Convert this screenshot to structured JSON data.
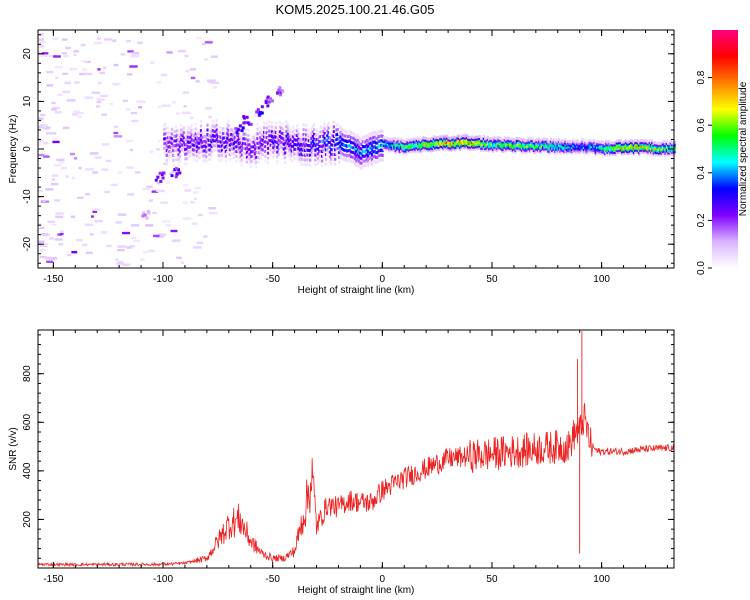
{
  "title": "KOM5.2025.100.21.46.G05",
  "chart_data": [
    {
      "type": "heatmap",
      "xlabel": "Height of straight line (km)",
      "ylabel": "Frequency (Hz)",
      "xlim": [
        -157,
        133
      ],
      "ylim": [
        -25,
        25
      ],
      "xticks": [
        -150,
        -100,
        -50,
        0,
        50,
        100
      ],
      "yticks": [
        -20,
        -10,
        0,
        10,
        20
      ],
      "colorbar": {
        "label": "Normalized spectral amplitude",
        "range": [
          0,
          1
        ],
        "ticks": [
          0.0,
          0.2,
          0.4,
          0.6,
          0.8
        ],
        "colormap": [
          "#ffffff",
          "#d9b3ff",
          "#8000ff",
          "#0000ff",
          "#00ffff",
          "#00ff00",
          "#ffff00",
          "#ff8000",
          "#ff0000",
          "#ff0080"
        ]
      },
      "ridge": [
        {
          "x": -95,
          "freq": 0.8,
          "amp": 0.25
        },
        {
          "x": -80,
          "freq": 1.8,
          "amp": 0.3
        },
        {
          "x": -70,
          "freq": 1.5,
          "amp": 0.3
        },
        {
          "x": -60,
          "freq": 0.5,
          "amp": 0.25
        },
        {
          "x": -50,
          "freq": 1.5,
          "amp": 0.3
        },
        {
          "x": -40,
          "freq": 1.2,
          "amp": 0.3
        },
        {
          "x": -30,
          "freq": 0.6,
          "amp": 0.35
        },
        {
          "x": -20,
          "freq": 1.5,
          "amp": 0.4
        },
        {
          "x": -10,
          "freq": -0.8,
          "amp": 0.4
        },
        {
          "x": 0,
          "freq": 1.0,
          "amp": 0.45
        },
        {
          "x": 10,
          "freq": 0.5,
          "amp": 0.6
        },
        {
          "x": 20,
          "freq": 1.0,
          "amp": 0.7
        },
        {
          "x": 30,
          "freq": 1.3,
          "amp": 0.85
        },
        {
          "x": 40,
          "freq": 1.4,
          "amp": 0.8
        },
        {
          "x": 50,
          "freq": 1.0,
          "amp": 0.6
        },
        {
          "x": 60,
          "freq": 0.8,
          "amp": 0.65
        },
        {
          "x": 70,
          "freq": 0.7,
          "amp": 0.6
        },
        {
          "x": 80,
          "freq": 0.5,
          "amp": 0.55
        },
        {
          "x": 90,
          "freq": 0.6,
          "amp": 0.4
        },
        {
          "x": 100,
          "freq": 0.1,
          "amp": 0.55
        },
        {
          "x": 110,
          "freq": 0.4,
          "amp": 0.8
        },
        {
          "x": 120,
          "freq": 0.3,
          "amp": 0.7
        },
        {
          "x": 133,
          "freq": 0.1,
          "amp": 0.6
        }
      ]
    },
    {
      "type": "line",
      "xlabel": "Height of straight line (km)",
      "ylabel": "SNR (v/v)",
      "xlim": [
        -157,
        133
      ],
      "ylim": [
        0,
        980
      ],
      "xticks": [
        -150,
        -100,
        -50,
        0,
        50,
        100
      ],
      "yticks": [
        200,
        400,
        600,
        800
      ],
      "color": "#ee2222",
      "series": [
        {
          "x": [
            -157,
            -140,
            -120,
            -100,
            -90,
            -80,
            -75,
            -70,
            -65,
            -60,
            -55,
            -50,
            -45,
            -40,
            -35,
            -32,
            -30,
            -25,
            -20,
            -15,
            -10,
            -5,
            0,
            10,
            20,
            30,
            40,
            50,
            60,
            70,
            80,
            85,
            88,
            90,
            92,
            95,
            98,
            100,
            110,
            120,
            133
          ],
          "values": [
            15,
            14,
            15,
            15,
            20,
            40,
            110,
            180,
            200,
            110,
            60,
            40,
            40,
            70,
            250,
            380,
            170,
            260,
            250,
            280,
            270,
            270,
            320,
            370,
            410,
            450,
            460,
            470,
            480,
            490,
            500,
            500,
            560,
            560,
            620,
            510,
            480,
            480,
            480,
            490,
            495
          ]
        }
      ],
      "spikes": [
        {
          "x": 91,
          "value": 975
        },
        {
          "x": 90,
          "value": 60
        },
        {
          "x": 89,
          "value": 860
        }
      ]
    }
  ]
}
